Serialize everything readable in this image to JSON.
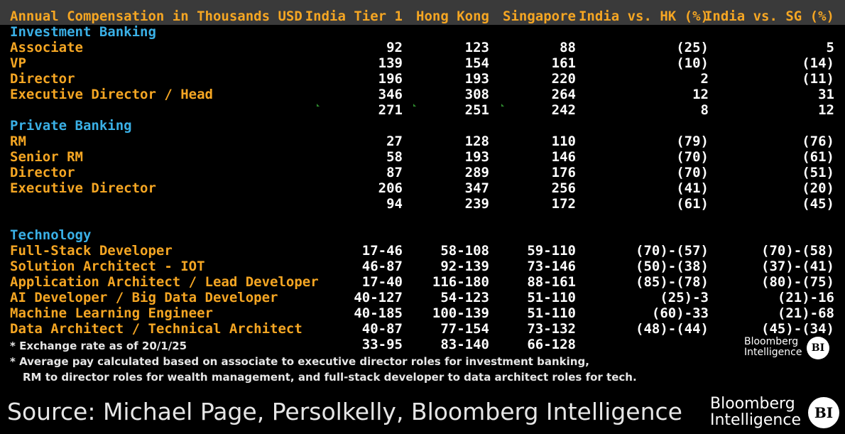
{
  "chart_data": {
    "type": "table",
    "title": "Annual Compensation in Thousands USD",
    "columns": [
      "India Tier 1",
      "Hong Kong",
      "Singapore",
      "India vs. HK (%)",
      "India vs. SG (%)"
    ],
    "sections": [
      {
        "name": "Investment Banking",
        "rows": [
          {
            "label": "Associate",
            "values": [
              "92",
              "123",
              "88",
              "(25)",
              "5"
            ]
          },
          {
            "label": "VP",
            "values": [
              "139",
              "154",
              "161",
              "(10)",
              "(14)"
            ]
          },
          {
            "label": "Director",
            "values": [
              "196",
              "193",
              "220",
              "2",
              "(11)"
            ]
          },
          {
            "label": "Executive Director / Head",
            "values": [
              "346",
              "308",
              "264",
              "12",
              "31"
            ]
          },
          {
            "label": "",
            "values": [
              "271",
              "251",
              "242",
              "8",
              "12"
            ]
          }
        ]
      },
      {
        "name": "Private Banking",
        "rows": [
          {
            "label": "RM",
            "values": [
              "27",
              "128",
              "110",
              "(79)",
              "(76)"
            ]
          },
          {
            "label": "Senior RM",
            "values": [
              "58",
              "193",
              "146",
              "(70)",
              "(61)"
            ]
          },
          {
            "label": "Director",
            "values": [
              "87",
              "289",
              "176",
              "(70)",
              "(51)"
            ]
          },
          {
            "label": "Executive Director",
            "values": [
              "206",
              "347",
              "256",
              "(41)",
              "(20)"
            ]
          },
          {
            "label": "",
            "values": [
              "94",
              "239",
              "172",
              "(61)",
              "(45)"
            ]
          }
        ]
      },
      {
        "name": "Technology",
        "rows": [
          {
            "label": "Full-Stack Developer",
            "values": [
              "17-46",
              "58-108",
              "59-110",
              "(70)-(57)",
              "(70)-(58)"
            ]
          },
          {
            "label": "Solution Architect - IOT",
            "values": [
              "46-87",
              "92-139",
              "73-146",
              "(50)-(38)",
              "(37)-(41)"
            ]
          },
          {
            "label": "Application Architect / Lead Developer",
            "values": [
              "17-40",
              "116-180",
              "88-161",
              "(85)-(78)",
              "(80)-(75)"
            ]
          },
          {
            "label": "AI Developer / Big Data Developer",
            "values": [
              "40-127",
              "54-123",
              "51-110",
              "(25)-3",
              "(21)-16"
            ]
          },
          {
            "label": "Machine Learning Engineer",
            "values": [
              "40-185",
              "100-139",
              "51-110",
              "(60)-33",
              "(21)-68"
            ]
          },
          {
            "label": "Data Architect / Technical Architect",
            "values": [
              "40-87",
              "77-154",
              "73-132",
              "(48)-(44)",
              "(45)-(34)"
            ]
          },
          {
            "label": "",
            "values": [
              "33-95",
              "83-140",
              "66-128",
              "",
              ""
            ]
          }
        ]
      }
    ]
  },
  "footnotes": [
    "* Exchange rate as of 20/1/25",
    "* Average pay calculated based on associate to executive director roles for investment banking,",
    "RM to director roles for wealth management, and full-stack developer to data architect roles for tech."
  ],
  "source": "Source: Michael Page, Persolkelly, Bloomberg Intelligence",
  "brand": {
    "line1": "Bloomberg",
    "line2": "Intelligence",
    "mark": "BI"
  },
  "colors": {
    "header_bg": "#3a3a3a",
    "label": "#f5a623",
    "section": "#3ab0e6",
    "value": "#ffffff"
  }
}
